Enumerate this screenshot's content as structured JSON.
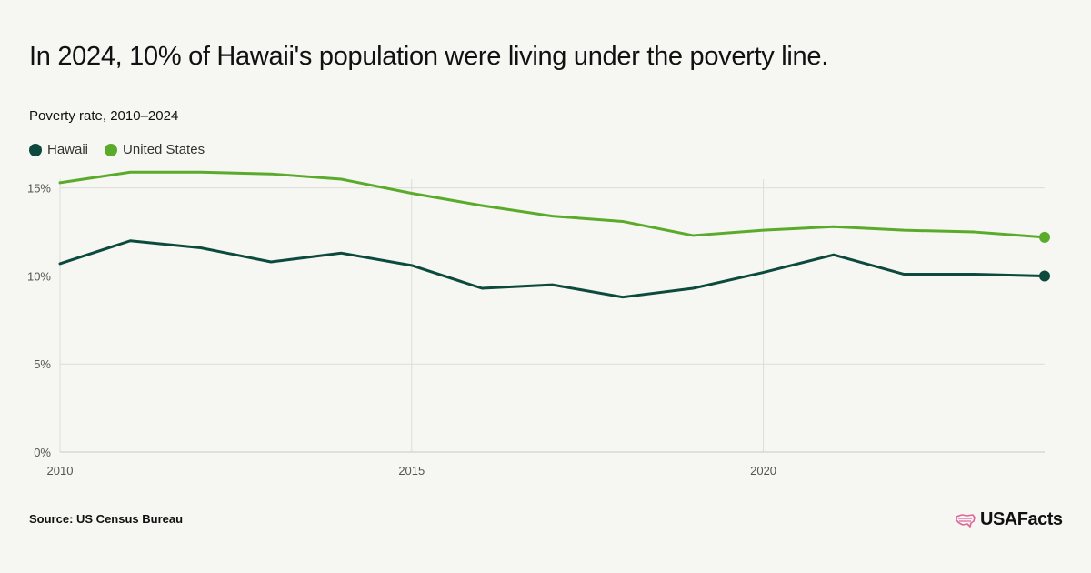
{
  "title": "In 2024, 10% of Hawaii's population were living under the poverty line.",
  "subtitle": "Poverty rate, 2010–2024",
  "source": "Source: US Census Bureau",
  "logo_text": "USAFacts",
  "colors": {
    "hawaii": "#0b4a3c",
    "us": "#5aab2b",
    "background": "#f6f6f2",
    "grid": "#dcdcd8",
    "logo_icon": "#e0669a"
  },
  "chart_data": {
    "type": "line",
    "title": "In 2024, 10% of Hawaii's population were living under the poverty line.",
    "subtitle": "Poverty rate, 2010–2024",
    "x": [
      2010,
      2011,
      2012,
      2013,
      2014,
      2015,
      2016,
      2017,
      2018,
      2019,
      2020,
      2021,
      2022,
      2023,
      2024
    ],
    "xlim": [
      2010,
      2024
    ],
    "x_ticks": [
      2010,
      2015,
      2020
    ],
    "x_tick_labels": [
      "2010",
      "2015",
      "2020"
    ],
    "ylim": [
      0,
      15.5
    ],
    "y_ticks": [
      0,
      5,
      10,
      15
    ],
    "y_tick_labels": [
      "0%",
      "5%",
      "10%",
      "15%"
    ],
    "grid": true,
    "legend_position": "top-left",
    "series": [
      {
        "name": "Hawaii",
        "color": "#0b4a3c",
        "values": [
          10.7,
          12.0,
          11.6,
          10.8,
          11.3,
          10.6,
          9.3,
          9.5,
          8.8,
          9.3,
          10.2,
          11.2,
          10.1,
          10.1,
          10.0
        ],
        "end_marker": true
      },
      {
        "name": "United States",
        "color": "#5aab2b",
        "values": [
          15.3,
          15.9,
          15.9,
          15.8,
          15.5,
          14.7,
          14.0,
          13.4,
          13.1,
          12.3,
          12.6,
          12.8,
          12.6,
          12.5,
          12.2
        ],
        "end_marker": true
      }
    ]
  }
}
